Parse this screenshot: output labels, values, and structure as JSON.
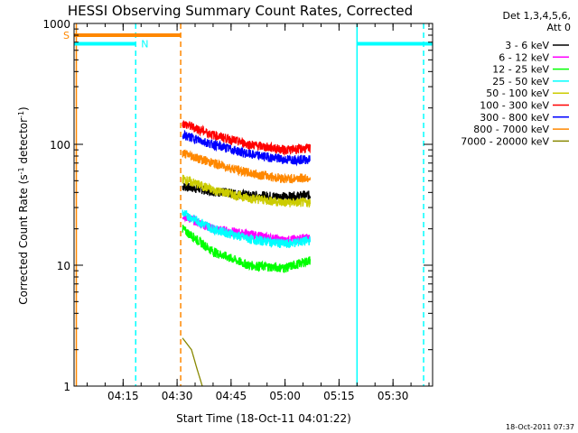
{
  "chart_data": {
    "type": "line",
    "title": "HESSI Observing Summary Count Rates, Corrected",
    "xlabel": "Start Time (18-Oct-11 04:01:22)",
    "ylabel_main": "Corrected Count Rate (s",
    "ylabel_sup1": "-1",
    "ylabel_mid": " detector",
    "ylabel_sup2": "-1",
    "ylabel_end": ")",
    "yscale": "log",
    "xlim": [
      "04:01:22",
      "05:41:00"
    ],
    "ylim": [
      1,
      1000
    ],
    "x_ticks": [
      "04:15",
      "04:30",
      "04:45",
      "05:00",
      "05:15",
      "05:30"
    ],
    "y_ticks": [
      "1",
      "10",
      "100",
      "1000"
    ],
    "legend_header": [
      "Det 1,3,4,5,6,",
      "Att 0"
    ],
    "legend_position": "right",
    "timestamp": "18-Oct-2011 07:37",
    "flag_labels": {
      "saa": "S",
      "night": "N"
    },
    "series": [
      {
        "name": "3 - 6 keV",
        "color": "#000000",
        "points": [
          [
            "04:31:30",
            45
          ],
          [
            "04:40:00",
            41
          ],
          [
            "04:50:00",
            38
          ],
          [
            "05:00:00",
            37
          ],
          [
            "05:07:00",
            38
          ]
        ]
      },
      {
        "name": "6 - 12 keV",
        "color": "#ff00ff",
        "points": [
          [
            "04:31:30",
            26
          ],
          [
            "04:40:00",
            20
          ],
          [
            "04:50:00",
            18
          ],
          [
            "05:00:00",
            16
          ],
          [
            "05:07:00",
            17
          ]
        ]
      },
      {
        "name": "12 - 25 keV",
        "color": "#00ff00",
        "points": [
          [
            "04:31:30",
            20
          ],
          [
            "04:40:00",
            13
          ],
          [
            "04:50:00",
            10
          ],
          [
            "05:00:00",
            9.5
          ],
          [
            "05:07:00",
            11
          ]
        ]
      },
      {
        "name": "25 - 50 keV",
        "color": "#00ffff",
        "points": [
          [
            "04:31:30",
            27
          ],
          [
            "04:40:00",
            20
          ],
          [
            "04:50:00",
            16.5
          ],
          [
            "05:00:00",
            15
          ],
          [
            "05:07:00",
            16
          ]
        ]
      },
      {
        "name": "50 - 100 keV",
        "color": "#cccc00",
        "points": [
          [
            "04:31:30",
            52
          ],
          [
            "04:40:00",
            42
          ],
          [
            "04:50:00",
            36
          ],
          [
            "05:00:00",
            33
          ],
          [
            "05:07:00",
            33
          ]
        ]
      },
      {
        "name": "100 - 300 keV",
        "color": "#ff0000",
        "points": [
          [
            "04:31:30",
            150
          ],
          [
            "04:40:00",
            120
          ],
          [
            "04:50:00",
            100
          ],
          [
            "05:00:00",
            90
          ],
          [
            "05:07:00",
            93
          ]
        ]
      },
      {
        "name": "300 - 800 keV",
        "color": "#0000ff",
        "points": [
          [
            "04:31:30",
            120
          ],
          [
            "04:40:00",
            100
          ],
          [
            "04:50:00",
            83
          ],
          [
            "05:00:00",
            75
          ],
          [
            "05:07:00",
            75
          ]
        ]
      },
      {
        "name": "800 - 7000 keV",
        "color": "#ff8800",
        "points": [
          [
            "04:31:30",
            85
          ],
          [
            "04:40:00",
            70
          ],
          [
            "04:50:00",
            58
          ],
          [
            "05:00:00",
            52
          ],
          [
            "05:07:00",
            53
          ]
        ]
      },
      {
        "name": "7000 - 20000 keV",
        "color": "#888800",
        "points": [
          [
            "04:31:30",
            2.5
          ],
          [
            "04:34:00",
            2.0
          ],
          [
            "04:35:30",
            1.4
          ],
          [
            "04:37:00",
            1.0
          ]
        ]
      }
    ],
    "flags": [
      {
        "label": "S",
        "color": "#ff8800",
        "start": "04:01:22",
        "end": "04:31:00",
        "level": 800
      },
      {
        "label": "N",
        "color": "#00ffff",
        "start": "04:01:22",
        "end": "04:18:30",
        "level": 680
      },
      {
        "label": "",
        "color": "#00ffff",
        "start": "05:20:00",
        "end": "05:41:00",
        "level": 680
      }
    ],
    "markers": [
      {
        "color": "#ff8800",
        "time": "04:02:00",
        "style": "solid"
      },
      {
        "color": "#00ffff",
        "time": "04:18:30",
        "style": "dashed"
      },
      {
        "color": "#ff8800",
        "time": "04:31:00",
        "style": "dashed"
      },
      {
        "color": "#00ffff",
        "time": "05:20:00",
        "style": "solid"
      },
      {
        "color": "#00ffff",
        "time": "05:38:30",
        "style": "dashed"
      }
    ]
  }
}
